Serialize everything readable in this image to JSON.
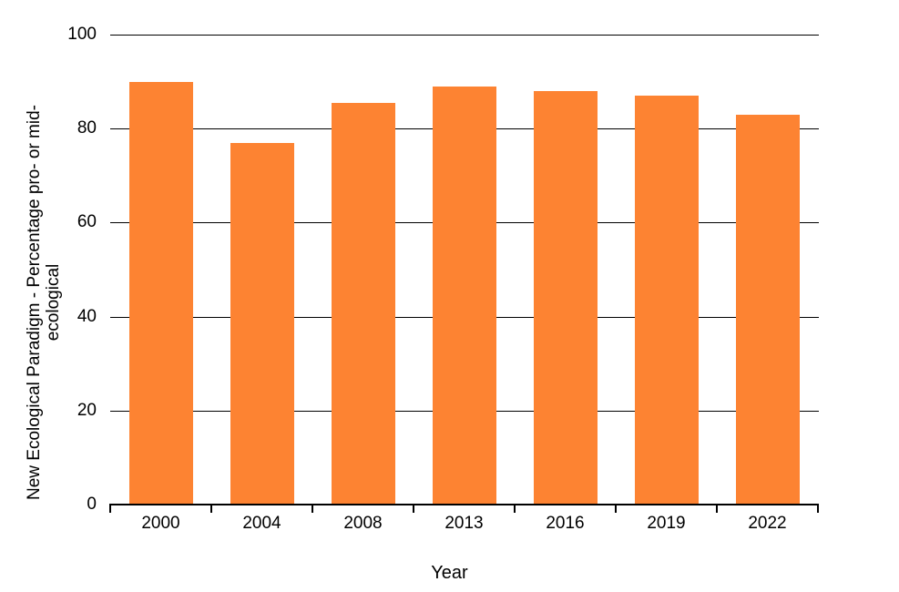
{
  "figure": {
    "background_color": "#ffffff",
    "bar_color": "#FD8332",
    "axis_color": "#000000",
    "gridline_color": "#000000",
    "text_color": "#000000"
  },
  "chart_data": {
    "type": "bar",
    "categories": [
      "2000",
      "2004",
      "2008",
      "2013",
      "2016",
      "2019",
      "2022"
    ],
    "values": [
      90,
      77,
      85.5,
      89,
      88,
      87,
      83
    ],
    "title": "",
    "xlabel": "Year",
    "ylabel": "New Ecological Paradigm - Percentage pro- or mid-ecological",
    "ylabel_lines": [
      "New Ecological Paradigm - Percentage pro- or mid-",
      "ecological"
    ],
    "ylim": [
      0,
      100
    ],
    "yticks": [
      0,
      20,
      40,
      60,
      80,
      100
    ],
    "grid": "horizontal gridlines at each y tick",
    "legend": "none"
  }
}
